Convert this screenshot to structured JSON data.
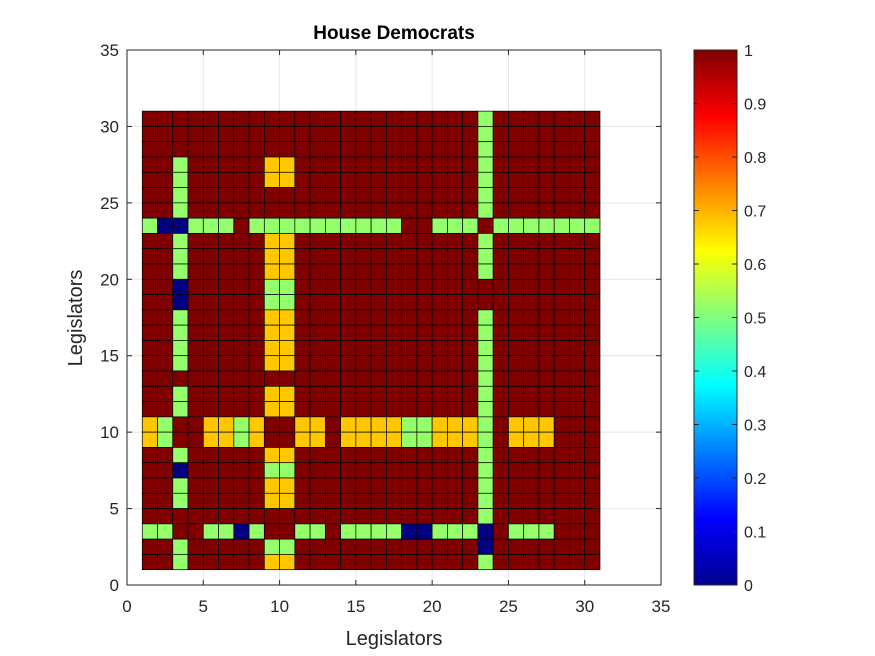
{
  "chart_data": {
    "type": "heatmap",
    "title": "House Democrats",
    "xlabel": "Legislators",
    "ylabel": "Legislators",
    "xlim": [
      0,
      35
    ],
    "ylim": [
      0,
      35
    ],
    "x_ticks": [
      0,
      5,
      10,
      15,
      20,
      25,
      30,
      35
    ],
    "y_ticks": [
      0,
      5,
      10,
      15,
      20,
      25,
      30,
      35
    ],
    "x_tick_labels": [
      "0",
      "5",
      "10",
      "15",
      "20",
      "25",
      "30",
      "35"
    ],
    "y_tick_labels": [
      "0",
      "5",
      "10",
      "15",
      "20",
      "25",
      "30",
      "35"
    ],
    "grid": true,
    "colormap": "jet",
    "colorbar": {
      "range": [
        0,
        1
      ],
      "ticks": [
        0,
        0.1,
        0.2,
        0.3,
        0.4,
        0.5,
        0.6,
        0.7,
        0.8,
        0.9,
        1
      ],
      "tick_labels": [
        "0",
        "0.1",
        "0.2",
        "0.3",
        "0.4",
        "0.5",
        "0.6",
        "0.7",
        "0.8",
        "0.9",
        "1"
      ],
      "location": "right"
    },
    "matrix_size": 30,
    "row_origin": 1,
    "col_origin": 1,
    "rows_from_top": [
      "RRRRRRRRRRRRRRRRRRRRRRGRRRRRRR",
      "RRRRRRRRRRRRRRRRRRRRRRGRRRRRRR",
      "RRRRRRRRRRRRRRRRRRRRRRGRRRRRRR",
      "RRGRRRRRYYRRRRRRRRRRRRGRRRRRRR",
      "RRGRRRRRYYRRRRRRRRRRRRGRRRRRRR",
      "RRGRRRRRRRRRRRRRRRRRRRGRRRRRRR",
      "RRGRRRRRRRRRRRRRRRRRRRGRRRRRRR",
      "GBBGGGRGGGGGGGGGGRRGGGRGGGGGGG",
      "RRGRRRRRYYRRRRRRRRRRRRGRRRRRRR",
      "RRGRRRRRYYRRRRRRRRRRRRGRRRRRRR",
      "RRGRRRRRYYRRRRRRRRRRRRGRRRRRRR",
      "RRBRRRRRGGRRRRRRRRRRRRRRRRRRRR",
      "RRBRRRRRGGRRRRRRRRRRRRRRRRRRRR",
      "RRGRRRRRYYRRRRRRRRRRRRGRRRRRRR",
      "RRGRRRRRYYRRRRRRRRRRRRGRRRRRRR",
      "RRGRRRRRYYRRRRRRRRRRRRGRRRRRRR",
      "RRGRRRRRYYRRRRRRRRRRRRGRRRRRRR",
      "RRRRRRRRRRRRRRRRRRRRRRGRRRRRRR",
      "RRGRRRRRYYRRRRRRRRRRRRGRRRRRRR",
      "RRGRRRRRYYRRRRRRRRRRRRGRRRRRRR",
      "YGRRYYGYRRYYRYYYYGGYYYGRYYYRRR",
      "YGRRYYGYRRYYRYYYYGGYYYGRYYYRRR",
      "RRGRRRRRYYRRRRRRRRRRRRGRRRRRRR",
      "RRBRRRRRGGRRRRRRRRRRRRGRRRRRRR",
      "RRGRRRRRYYRRRRRRRRRRRRGRRRRRRR",
      "RRGRRRRRYYRRRRRRRRRRRRGRRRRRRR",
      "RRRRRRRRRRRRRRRRRRRRRRGRRRRRRR",
      "GGRRGGBGRRGGRGGGGBBGGGBRGGGRRR",
      "RRGRRRRRGGRRRRRRRRRRRRBRRRRRRR",
      "RRGRRRRRYYRRRRRRRRRRRRGRRRRRRR"
    ],
    "cell_value_key": {
      "R": 1.0,
      "Y": 0.68,
      "G": 0.52,
      "B": 0.0
    }
  }
}
